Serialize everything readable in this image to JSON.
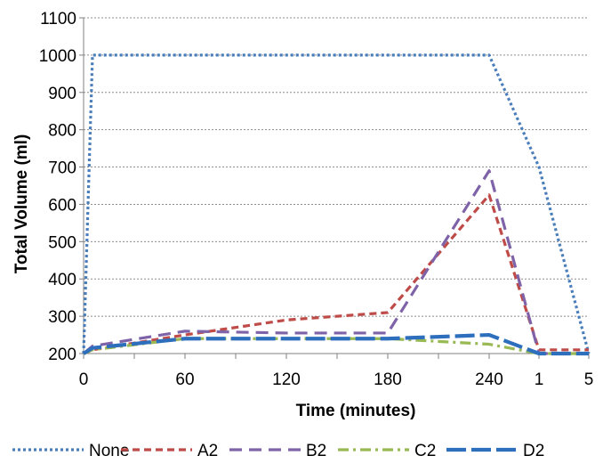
{
  "chart_data": {
    "type": "line",
    "xlabel": "Time (minutes)",
    "ylabel": "Total Volume (ml)",
    "ylim": [
      200,
      1100
    ],
    "y_ticks": [
      200,
      300,
      400,
      500,
      600,
      700,
      800,
      900,
      1000,
      1100
    ],
    "x_tick_labels": [
      "0",
      "60",
      "120",
      "180",
      "240",
      "1",
      "5"
    ],
    "grid": true,
    "legend_position": "bottom",
    "series": [
      {
        "name": "None",
        "color": "#4a7ebb",
        "dash": "dotted",
        "points": [
          [
            "0",
            200
          ],
          [
            "5",
            1000
          ],
          [
            "240",
            1000
          ],
          [
            "1",
            700
          ],
          [
            "5",
            200
          ]
        ]
      },
      {
        "name": "A2",
        "color": "#be4b48",
        "dash": "dash",
        "points": [
          [
            "0",
            200
          ],
          [
            "5",
            210
          ],
          [
            "60",
            250
          ],
          [
            "120",
            290
          ],
          [
            "180",
            310
          ],
          [
            "240",
            625
          ],
          [
            "1",
            210
          ],
          [
            "5",
            210
          ]
        ]
      },
      {
        "name": "B2",
        "color": "#7f63a8",
        "dash": "longdash",
        "points": [
          [
            "0",
            200
          ],
          [
            "5",
            220
          ],
          [
            "60",
            260
          ],
          [
            "120",
            255
          ],
          [
            "180",
            255
          ],
          [
            "240",
            690
          ],
          [
            "1",
            200
          ],
          [
            "5",
            200
          ]
        ]
      },
      {
        "name": "C2",
        "color": "#98b954",
        "dash": "dashdot",
        "points": [
          [
            "0",
            200
          ],
          [
            "5",
            210
          ],
          [
            "60",
            240
          ],
          [
            "120",
            240
          ],
          [
            "180",
            240
          ],
          [
            "240",
            225
          ],
          [
            "1",
            200
          ],
          [
            "5",
            200
          ]
        ]
      },
      {
        "name": "D2",
        "color": "#2e6fbd",
        "dash": "solid-long",
        "points": [
          [
            "0",
            200
          ],
          [
            "5",
            215
          ],
          [
            "60",
            240
          ],
          [
            "120",
            240
          ],
          [
            "180",
            240
          ],
          [
            "240",
            250
          ],
          [
            "1",
            200
          ],
          [
            "5",
            200
          ]
        ]
      }
    ]
  }
}
